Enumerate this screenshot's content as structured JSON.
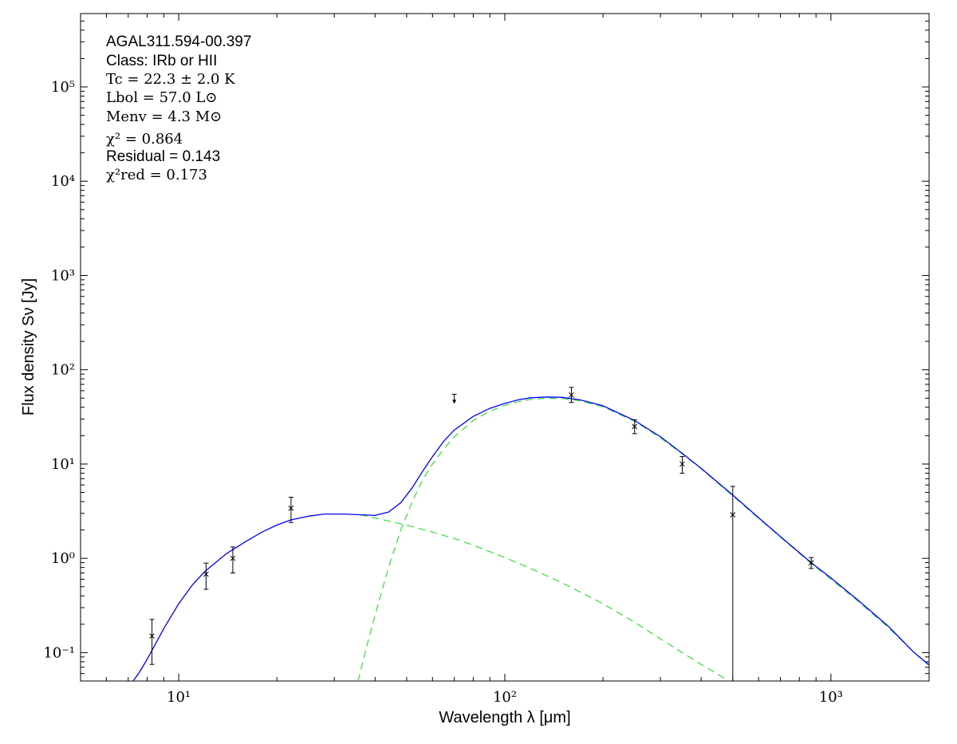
{
  "chart_data": {
    "type": "scatter",
    "xscale": "log",
    "yscale": "log",
    "xlim": [
      5,
      2000
    ],
    "ylim": [
      0.05,
      600000
    ],
    "xlabel": "Wavelength λ [μm]",
    "ylabel": "Flux density Sν [Jy]",
    "xticks": [
      {
        "value": 10,
        "label": "10¹"
      },
      {
        "value": 100,
        "label": "10²"
      },
      {
        "value": 1000,
        "label": "10³"
      }
    ],
    "yticks": [
      {
        "value": 0.1,
        "label": "10⁻¹"
      },
      {
        "value": 1,
        "label": "10⁰"
      },
      {
        "value": 10,
        "label": "10¹"
      },
      {
        "value": 100,
        "label": "10²"
      },
      {
        "value": 1000,
        "label": "10³"
      },
      {
        "value": 10000,
        "label": "10⁴"
      },
      {
        "value": 100000,
        "label": "10⁵"
      }
    ],
    "annotations": [
      "AGAL311.594-00.397",
      "Class: IRb or HII",
      "Tc = 22.3 ± 2.0 K",
      "Lbol = 57.0 L⊙",
      "Menv = 4.3 M⊙",
      "χ² = 0.864",
      "Residual = 0.143",
      "χ²red = 0.173"
    ],
    "points": [
      {
        "x": 8.28,
        "y": 0.15,
        "ylow": 0.075,
        "yhigh": 0.225
      },
      {
        "x": 12.13,
        "y": 0.68,
        "ylow": 0.47,
        "yhigh": 0.89
      },
      {
        "x": 14.65,
        "y": 1.0,
        "ylow": 0.7,
        "yhigh": 1.32
      },
      {
        "x": 22.1,
        "y": 3.4,
        "ylow": 2.4,
        "yhigh": 4.45
      },
      {
        "x": 160,
        "y": 54,
        "ylow": 45,
        "yhigh": 65
      },
      {
        "x": 250,
        "y": 25,
        "ylow": 21,
        "yhigh": 29.5
      },
      {
        "x": 350,
        "y": 10,
        "ylow": 8,
        "yhigh": 12
      },
      {
        "x": 500,
        "y": 2.9,
        "ylow": 0.04,
        "yhigh": 5.8
      },
      {
        "x": 870,
        "y": 0.9,
        "ylow": 0.78,
        "yhigh": 1.02
      }
    ],
    "upper_limits": [
      {
        "x": 70,
        "y": 55
      }
    ],
    "series": [
      {
        "role": "total",
        "color": "#0000ff",
        "style": "solid",
        "points": [
          [
            7.25,
            0.05
          ],
          [
            7.6,
            0.063
          ],
          [
            8,
            0.085
          ],
          [
            9,
            0.18
          ],
          [
            10,
            0.33
          ],
          [
            11,
            0.52
          ],
          [
            12,
            0.72
          ],
          [
            14,
            1.12
          ],
          [
            16,
            1.5
          ],
          [
            18,
            1.9
          ],
          [
            20,
            2.25
          ],
          [
            22,
            2.55
          ],
          [
            25,
            2.8
          ],
          [
            28,
            2.95
          ],
          [
            32,
            2.95
          ],
          [
            36,
            2.9
          ],
          [
            40,
            2.85
          ],
          [
            44,
            3.1
          ],
          [
            48,
            3.9
          ],
          [
            52,
            5.6
          ],
          [
            56,
            8.4
          ],
          [
            60,
            12
          ],
          [
            65,
            17.5
          ],
          [
            70,
            23
          ],
          [
            80,
            32
          ],
          [
            90,
            39
          ],
          [
            100,
            44
          ],
          [
            110,
            48
          ],
          [
            120,
            50.5
          ],
          [
            135,
            51.5
          ],
          [
            150,
            51
          ],
          [
            170,
            48
          ],
          [
            200,
            41.5
          ],
          [
            250,
            29
          ],
          [
            300,
            19.5
          ],
          [
            350,
            13
          ],
          [
            400,
            9
          ],
          [
            500,
            4.7
          ],
          [
            600,
            2.7
          ],
          [
            700,
            1.7
          ],
          [
            870,
            0.9
          ],
          [
            1000,
            0.62
          ],
          [
            1200,
            0.37
          ],
          [
            1500,
            0.19
          ],
          [
            1800,
            0.1
          ],
          [
            2000,
            0.074
          ]
        ]
      },
      {
        "role": "warm component",
        "color": "#33dd33",
        "style": "dashed",
        "points": [
          [
            36,
            2.9
          ],
          [
            40,
            2.68
          ],
          [
            45,
            2.45
          ],
          [
            50,
            2.25
          ],
          [
            60,
            1.9
          ],
          [
            70,
            1.62
          ],
          [
            80,
            1.38
          ],
          [
            100,
            1.02
          ],
          [
            120,
            0.78
          ],
          [
            150,
            0.55
          ],
          [
            200,
            0.33
          ],
          [
            250,
            0.21
          ],
          [
            300,
            0.14
          ],
          [
            350,
            0.1
          ],
          [
            400,
            0.075
          ],
          [
            450,
            0.059
          ],
          [
            480,
            0.051
          ]
        ]
      },
      {
        "role": "cold component",
        "color": "#33dd33",
        "style": "dashed",
        "points": [
          [
            35.5,
            0.05
          ],
          [
            37,
            0.09
          ],
          [
            40,
            0.25
          ],
          [
            44,
            0.8
          ],
          [
            48,
            2.0
          ],
          [
            52,
            4.0
          ],
          [
            56,
            6.8
          ],
          [
            60,
            10
          ],
          [
            65,
            14.5
          ],
          [
            70,
            19.5
          ],
          [
            80,
            29
          ],
          [
            90,
            36.5
          ],
          [
            100,
            42
          ],
          [
            110,
            46
          ],
          [
            120,
            48.5
          ],
          [
            135,
            50
          ],
          [
            150,
            49.5
          ],
          [
            170,
            47
          ],
          [
            200,
            40.5
          ],
          [
            250,
            28.5
          ],
          [
            300,
            19
          ],
          [
            350,
            12.8
          ],
          [
            400,
            8.9
          ],
          [
            500,
            4.6
          ],
          [
            600,
            2.65
          ],
          [
            700,
            1.68
          ],
          [
            870,
            0.88
          ],
          [
            1000,
            0.6
          ],
          [
            1200,
            0.36
          ],
          [
            1500,
            0.185
          ],
          [
            1800,
            0.1
          ],
          [
            2000,
            0.073
          ]
        ]
      }
    ]
  }
}
